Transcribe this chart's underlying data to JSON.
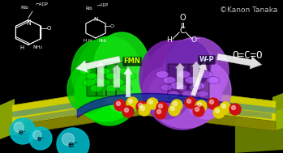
{
  "background_color": "#000000",
  "copyright_text": "©Kanon Tanaka",
  "copyright_color": "#bbbbbb",
  "copyright_fontsize": 6.5,
  "fmn_label": "FMN",
  "wp_label": "W-P",
  "fmn_color": "#ccff00",
  "wp_color": "#ddddff",
  "electron_color": "#00bbcc",
  "electron_label_color": "#001122",
  "arrow_color": "#dddddd",
  "co2_formula": "O=C=O",
  "label_color": "#ffffff",
  "ball_red_color": "#aa0000",
  "ball_yellow_color": "#cccc00",
  "green_protein_color": "#00dd00",
  "purple_protein_color": "#9944cc"
}
